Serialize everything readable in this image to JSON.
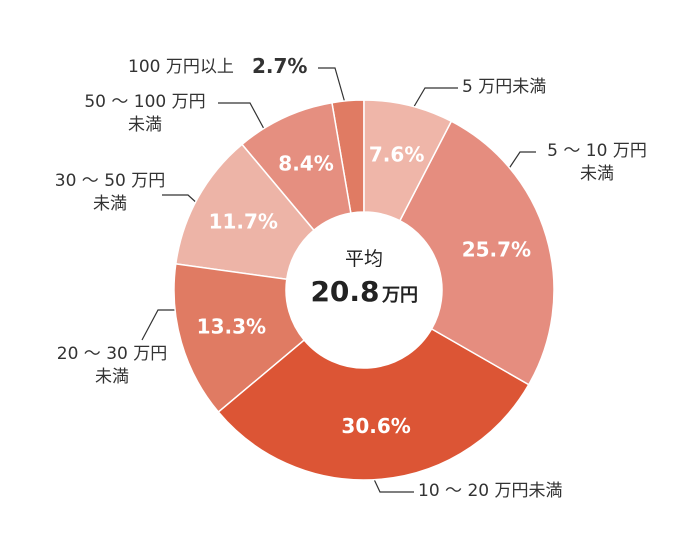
{
  "chart_data": {
    "type": "donut",
    "categories": [
      "5 万円未満",
      "5 〜 10 万円\n未満",
      "10 〜 20 万円未満",
      "20 〜 30 万円\n未満",
      "30 〜 50 万円\n未満",
      "50 〜 100 万円\n未満",
      "100 万円以上"
    ],
    "values": [
      7.6,
      25.7,
      30.6,
      13.3,
      11.7,
      8.4,
      2.7
    ],
    "value_labels": [
      "7.6%",
      "25.7%",
      "30.6%",
      "13.3%",
      "11.7%",
      "8.4%",
      "2.7%"
    ],
    "colors": [
      "#efb6a9",
      "#e58d7f",
      "#dc5535",
      "#e07b63",
      "#edb4a7",
      "#e58f80",
      "#e07b63"
    ],
    "center": {
      "label": "平均",
      "value": 20.8,
      "unit": "万円"
    }
  }
}
